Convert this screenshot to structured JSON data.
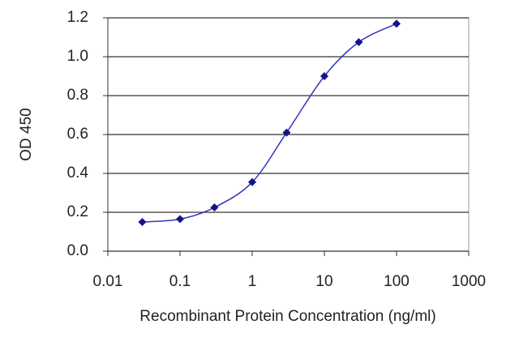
{
  "chart_data": {
    "type": "line",
    "x_label": "Recombinant Protein Concentration (ng/ml)",
    "y_label": "OD 450",
    "x": [
      0.03,
      0.1,
      0.3,
      1,
      3,
      10,
      30,
      100
    ],
    "values": [
      0.15,
      0.165,
      0.225,
      0.355,
      0.61,
      0.9,
      1.075,
      1.17
    ],
    "color": "#3333bb",
    "marker_color": "#14148a",
    "xscale": "log",
    "xlim": [
      0.01,
      1000
    ],
    "xticks": [
      0.01,
      0.1,
      1,
      10,
      100,
      1000
    ],
    "ylim": [
      0,
      1.2
    ],
    "yticks": [
      {
        "value": 0,
        "label": "0.0"
      },
      0.2,
      0.4,
      0.6,
      0.8,
      {
        "value": 1,
        "label": "1.0"
      },
      1.2
    ],
    "grid": true
  }
}
